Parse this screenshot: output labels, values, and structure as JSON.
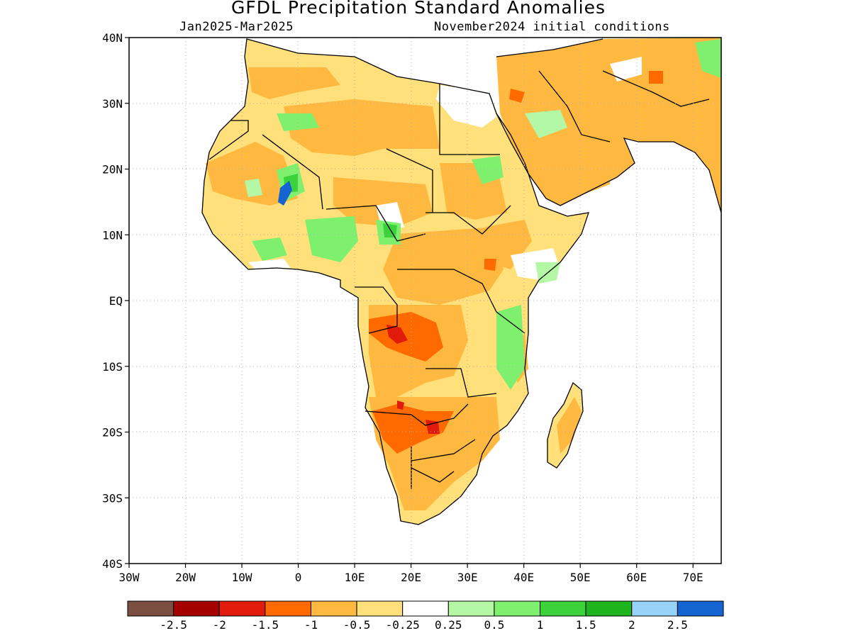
{
  "title": "GFDL Precipitation Standard Anomalies",
  "subtitle_left": "Jan2025-Mar2025",
  "subtitle_right": "November2024 initial conditions",
  "lat_ticks": [
    {
      "label": "40N",
      "value": 40
    },
    {
      "label": "30N",
      "value": 30
    },
    {
      "label": "20N",
      "value": 20
    },
    {
      "label": "10N",
      "value": 10
    },
    {
      "label": "EQ",
      "value": 0
    },
    {
      "label": "10S",
      "value": -10
    },
    {
      "label": "20S",
      "value": -20
    },
    {
      "label": "30S",
      "value": -30
    },
    {
      "label": "40S",
      "value": -40
    }
  ],
  "lon_ticks": [
    {
      "label": "30W",
      "value": -30
    },
    {
      "label": "20W",
      "value": -20
    },
    {
      "label": "10W",
      "value": -10
    },
    {
      "label": "0",
      "value": 0
    },
    {
      "label": "10E",
      "value": 10
    },
    {
      "label": "20E",
      "value": 20
    },
    {
      "label": "30E",
      "value": 30
    },
    {
      "label": "40E",
      "value": 40
    },
    {
      "label": "50E",
      "value": 50
    },
    {
      "label": "60E",
      "value": 60
    },
    {
      "label": "70E",
      "value": 70
    }
  ],
  "colorbar": {
    "colors": [
      "#7a4f42",
      "#a50000",
      "#e01b0b",
      "#ff6a00",
      "#ffb940",
      "#ffe07a",
      "#ffffff",
      "#b4f7a4",
      "#7ef06e",
      "#3cd23c",
      "#1eb41e",
      "#96d2fa",
      "#1464d2"
    ],
    "labels": [
      "-2.5",
      "-2",
      "-1.5",
      "-1",
      "-0.5",
      "-0.25",
      "0.25",
      "0.5",
      "1",
      "1.5",
      "2",
      "2.5"
    ]
  },
  "map_colors": {
    "light_orange": "#ffe07a",
    "orange": "#ffb940",
    "dark_orange": "#ff6a00",
    "red": "#e01b0b",
    "light_green": "#b4f7a4",
    "green": "#7ef06e",
    "dark_green": "#3cd23c",
    "blue": "#1464d2"
  }
}
